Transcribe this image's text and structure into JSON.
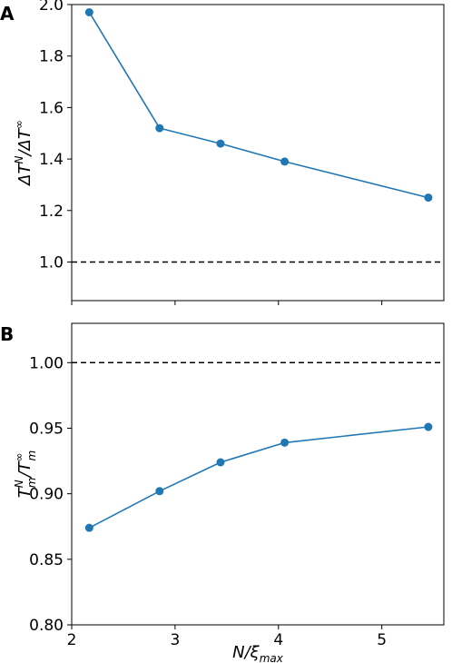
{
  "chart_data": [
    {
      "panel": "A",
      "type": "line",
      "ylabel": "ΔT^N/ΔT^∞",
      "ylim": [
        0.85,
        2.0
      ],
      "xlim": [
        2.0,
        5.6
      ],
      "yticks": [
        "1.0",
        "1.2",
        "1.4",
        "1.6",
        "1.8",
        "2.0"
      ],
      "ytick_values": [
        1.0,
        1.2,
        1.4,
        1.6,
        1.8,
        2.0
      ],
      "reference_line": 1.0,
      "x": [
        2.17,
        2.85,
        3.44,
        4.06,
        5.45
      ],
      "y": [
        1.97,
        1.52,
        1.46,
        1.39,
        1.25
      ],
      "color": "#1f77b4"
    },
    {
      "panel": "B",
      "type": "line",
      "ylabel": "T_m^N/T_m^∞",
      "xlabel": "N/ξ_max",
      "ylim": [
        0.8,
        1.03
      ],
      "xlim": [
        2.0,
        5.6
      ],
      "yticks": [
        "0.80",
        "0.85",
        "0.90",
        "0.95",
        "1.00"
      ],
      "ytick_values": [
        0.8,
        0.85,
        0.9,
        0.95,
        1.0
      ],
      "xticks": [
        "2",
        "3",
        "4",
        "5"
      ],
      "xtick_values": [
        2,
        3,
        4,
        5
      ],
      "reference_line": 1.0,
      "x": [
        2.17,
        2.85,
        3.44,
        4.06,
        5.45
      ],
      "y": [
        0.874,
        0.902,
        0.924,
        0.939,
        0.951
      ],
      "color": "#1f77b4"
    }
  ]
}
